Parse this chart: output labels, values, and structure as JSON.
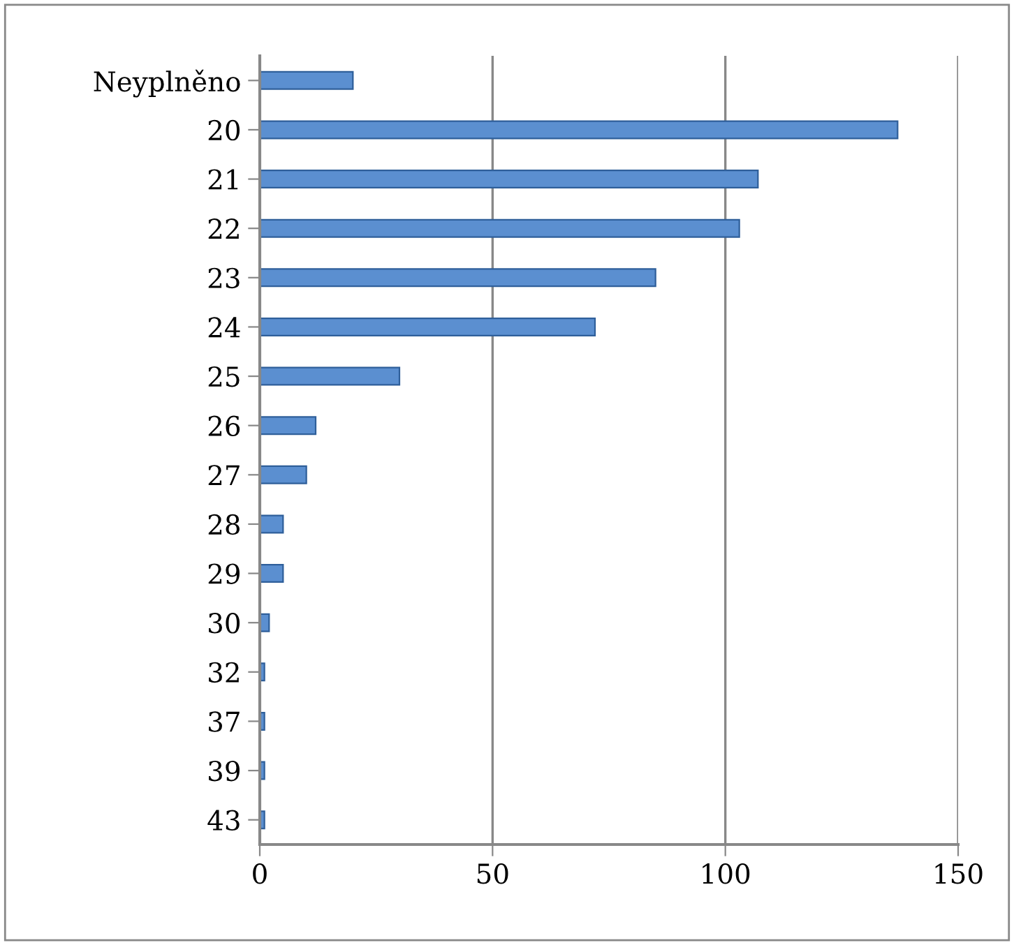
{
  "chart_data": {
    "type": "bar",
    "orientation": "horizontal",
    "categories": [
      "Neyplněno",
      "20",
      "21",
      "22",
      "23",
      "24",
      "25",
      "26",
      "27",
      "28",
      "29",
      "30",
      "32",
      "37",
      "39",
      "43"
    ],
    "values": [
      20,
      137,
      107,
      103,
      85,
      72,
      30,
      12,
      10,
      5,
      5,
      2,
      1,
      1,
      1,
      1
    ],
    "color": "#5b8fd0",
    "xlim": [
      0,
      150
    ],
    "xticks": [
      0,
      50,
      100,
      150
    ],
    "grid": "x",
    "legend": false
  }
}
